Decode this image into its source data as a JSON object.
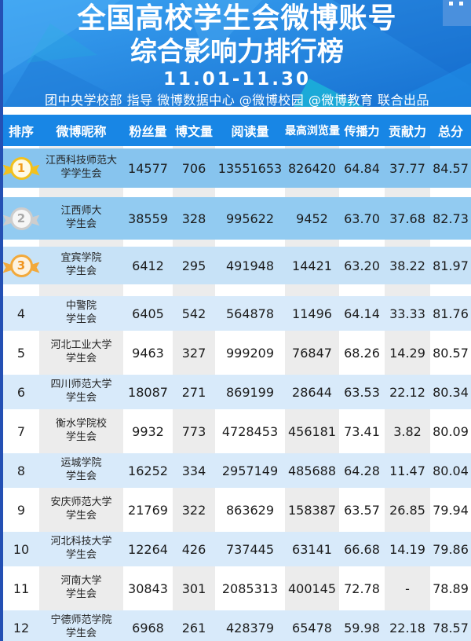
{
  "banner": {
    "title_line1": "全国高校学生会微博账号",
    "title_line2": "综合影响力排行榜",
    "date_range": "11.01-11.30",
    "credit_line": "团中央学校部 指导  微博数据中心 @微博校园 @微博教育 联合出品"
  },
  "colors": {
    "banner_blue_top": "#3aa2f2",
    "banner_blue_bottom": "#156fd0",
    "facet_teal": "#1bb9d8",
    "header_bar_blue": "#1886e5",
    "row_rank1_bg": "#87c4ee",
    "row_rank2_bg": "#92cbf1",
    "row_rank3_bg": "#c7e2f7",
    "row_even_bg": "#d8eafa",
    "column_stripe_gray": "#ececec",
    "left_border_blue": "#2450b4",
    "medal_gold": "#f2c11e",
    "medal_silver": "#cdcdcd",
    "medal_bronze": "#f2a93b"
  },
  "table": {
    "headers": [
      "排序",
      "微博昵称",
      "粉丝量",
      "博文量",
      "阅读量",
      "最高浏览量",
      "传播力",
      "贡献力",
      "总分"
    ],
    "rows": [
      {
        "rank": "1",
        "medal": "gold",
        "name_line1": "江西科技师范大",
        "name_line2": "学学生会",
        "followers": "14577",
        "posts": "706",
        "reads": "13551653",
        "max_views": "826420",
        "spread": "64.84",
        "contribution": "37.77",
        "total": "84.57"
      },
      {
        "rank": "2",
        "medal": "silver",
        "name_line1": "江西师大",
        "name_line2": "学生会",
        "followers": "38559",
        "posts": "328",
        "reads": "995622",
        "max_views": "9452",
        "spread": "63.70",
        "contribution": "37.68",
        "total": "82.73"
      },
      {
        "rank": "3",
        "medal": "bronze",
        "name_line1": "宜宾学院",
        "name_line2": "学生会",
        "followers": "6412",
        "posts": "295",
        "reads": "491948",
        "max_views": "14421",
        "spread": "63.20",
        "contribution": "38.22",
        "total": "81.97"
      },
      {
        "rank": "4",
        "medal": null,
        "name_line1": "中警院",
        "name_line2": "学生会",
        "followers": "6405",
        "posts": "542",
        "reads": "564878",
        "max_views": "11496",
        "spread": "64.14",
        "contribution": "33.33",
        "total": "81.76"
      },
      {
        "rank": "5",
        "medal": null,
        "name_line1": "河北工业大学",
        "name_line2": "学生会",
        "followers": "9463",
        "posts": "327",
        "reads": "999209",
        "max_views": "76847",
        "spread": "68.26",
        "contribution": "14.29",
        "total": "80.57"
      },
      {
        "rank": "6",
        "medal": null,
        "name_line1": "四川师范大学",
        "name_line2": "学生会",
        "followers": "18087",
        "posts": "271",
        "reads": "869199",
        "max_views": "28644",
        "spread": "63.53",
        "contribution": "22.12",
        "total": "80.34"
      },
      {
        "rank": "7",
        "medal": null,
        "name_line1": "衡水学院校",
        "name_line2": "学生会",
        "followers": "9932",
        "posts": "773",
        "reads": "4728453",
        "max_views": "456181",
        "spread": "73.41",
        "contribution": "3.82",
        "total": "80.09"
      },
      {
        "rank": "8",
        "medal": null,
        "name_line1": "运城学院",
        "name_line2": "学生会",
        "followers": "16252",
        "posts": "334",
        "reads": "2957149",
        "max_views": "485688",
        "spread": "64.28",
        "contribution": "11.47",
        "total": "80.04"
      },
      {
        "rank": "9",
        "medal": null,
        "name_line1": "安庆师范大学",
        "name_line2": "学生会",
        "followers": "21769",
        "posts": "322",
        "reads": "863629",
        "max_views": "158387",
        "spread": "63.57",
        "contribution": "26.85",
        "total": "79.94"
      },
      {
        "rank": "10",
        "medal": null,
        "name_line1": "河北科技大学",
        "name_line2": "学生会",
        "followers": "12264",
        "posts": "426",
        "reads": "737445",
        "max_views": "63141",
        "spread": "66.68",
        "contribution": "14.19",
        "total": "79.86"
      },
      {
        "rank": "11",
        "medal": null,
        "name_line1": "河南大学",
        "name_line2": "学生会",
        "followers": "30843",
        "posts": "301",
        "reads": "2085313",
        "max_views": "400145",
        "spread": "72.78",
        "contribution": "-",
        "total": "78.89"
      },
      {
        "rank": "12",
        "medal": null,
        "name_line1": "宁德师范学院",
        "name_line2": "学生会",
        "followers": "6968",
        "posts": "261",
        "reads": "428379",
        "max_views": "65478",
        "spread": "59.98",
        "contribution": "22.18",
        "total": "78.57"
      }
    ]
  },
  "chart_data": {
    "type": "table",
    "title": "全国高校学生会微博账号综合影响力排行榜 11.01-11.30",
    "columns": [
      "排序",
      "微博昵称",
      "粉丝量",
      "博文量",
      "阅读量",
      "最高浏览量",
      "传播力",
      "贡献力",
      "总分"
    ],
    "rows": [
      [
        1,
        "江西科技师范大学学生会",
        14577,
        706,
        13551653,
        826420,
        64.84,
        37.77,
        84.57
      ],
      [
        2,
        "江西师大学生会",
        38559,
        328,
        995622,
        9452,
        63.7,
        37.68,
        82.73
      ],
      [
        3,
        "宜宾学院学生会",
        6412,
        295,
        491948,
        14421,
        63.2,
        38.22,
        81.97
      ],
      [
        4,
        "中警院学生会",
        6405,
        542,
        564878,
        11496,
        64.14,
        33.33,
        81.76
      ],
      [
        5,
        "河北工业大学学生会",
        9463,
        327,
        999209,
        76847,
        68.26,
        14.29,
        80.57
      ],
      [
        6,
        "四川师范大学学生会",
        18087,
        271,
        869199,
        28644,
        63.53,
        22.12,
        80.34
      ],
      [
        7,
        "衡水学院校学生会",
        9932,
        773,
        4728453,
        456181,
        73.41,
        3.82,
        80.09
      ],
      [
        8,
        "运城学院学生会",
        16252,
        334,
        2957149,
        485688,
        64.28,
        11.47,
        80.04
      ],
      [
        9,
        "安庆师范大学学生会",
        21769,
        322,
        863629,
        158387,
        63.57,
        26.85,
        79.94
      ],
      [
        10,
        "河北科技大学学生会",
        12264,
        426,
        737445,
        63141,
        66.68,
        14.19,
        79.86
      ],
      [
        11,
        "河南大学学生会",
        30843,
        301,
        2085313,
        400145,
        72.78,
        "-",
        78.89
      ],
      [
        12,
        "宁德师范学院学生会",
        6968,
        261,
        428379,
        65478,
        59.98,
        22.18,
        78.57
      ]
    ]
  }
}
